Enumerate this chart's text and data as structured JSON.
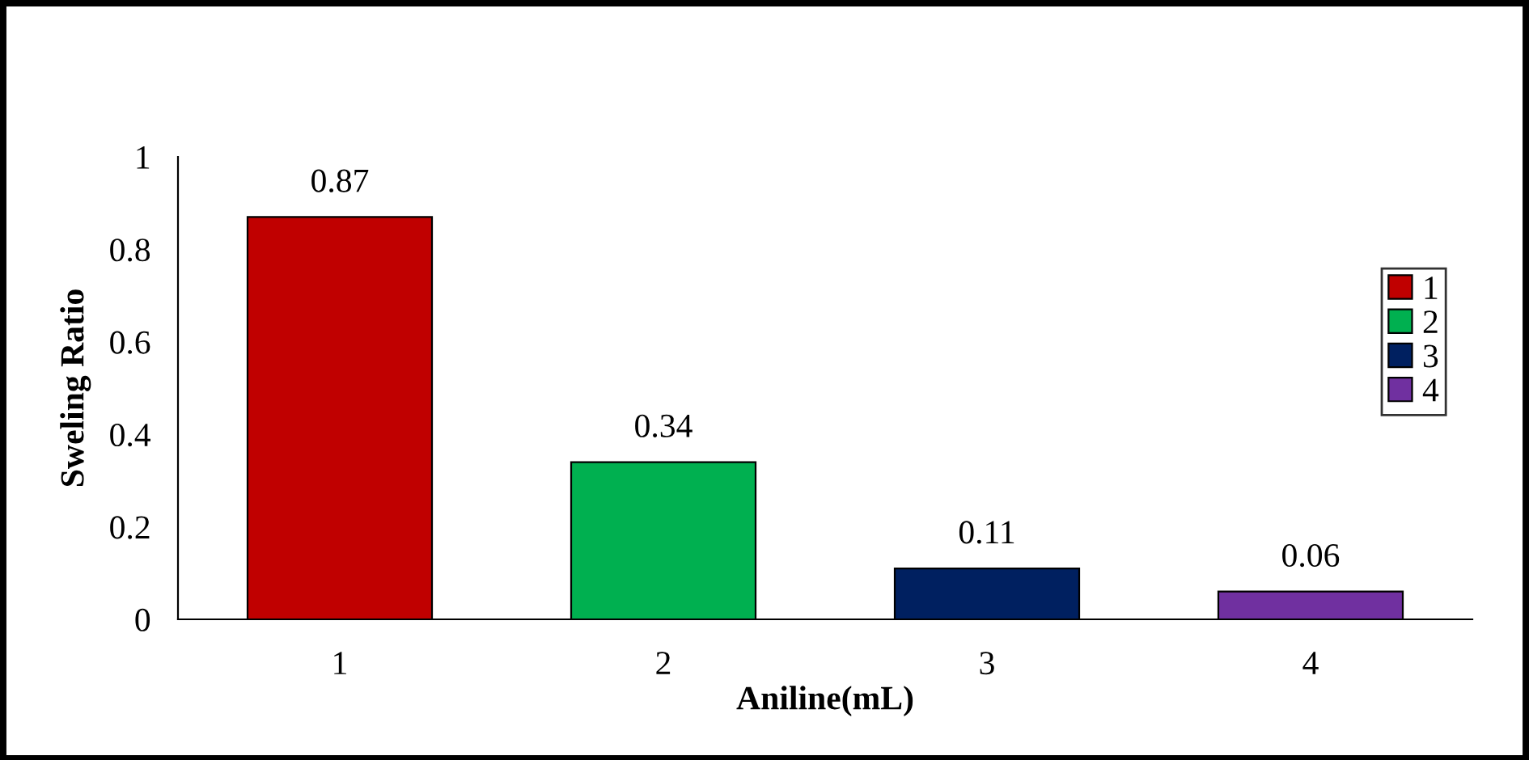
{
  "chart_data": {
    "type": "bar",
    "xlabel": "Aniline(mL)",
    "ylabel": "Sweling Ratio",
    "categories": [
      "1",
      "2",
      "3",
      "4"
    ],
    "series": [
      {
        "name": "1",
        "color": "#c00000",
        "values": [
          0.87,
          null,
          null,
          null
        ]
      },
      {
        "name": "2",
        "color": "#00b050",
        "values": [
          null,
          0.34,
          null,
          null
        ]
      },
      {
        "name": "3",
        "color": "#002060",
        "values": [
          null,
          null,
          0.11,
          null
        ]
      },
      {
        "name": "4",
        "color": "#7030a0",
        "values": [
          null,
          null,
          null,
          0.06
        ]
      }
    ],
    "ylim": [
      0,
      1
    ],
    "yticks": [
      0,
      {
        "value": 0.2,
        "label": "0.2"
      },
      {
        "value": 0.4,
        "label": "0.4"
      },
      {
        "value": 0.6,
        "label": "0.6"
      },
      {
        "value": 0.8,
        "label": "0.8"
      },
      1
    ],
    "data_labels": true,
    "legend": "right",
    "grid": false
  }
}
